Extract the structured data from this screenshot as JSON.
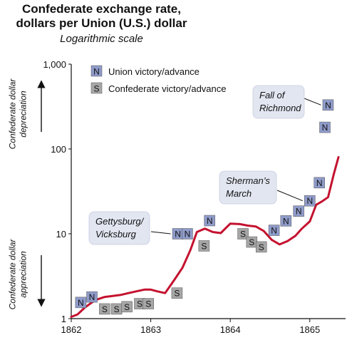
{
  "chart_data": {
    "type": "line",
    "title_lines": [
      "Confederate exchange rate,",
      "dollars per Union (U.S.) dollar"
    ],
    "subtitle": "Logarithmic scale",
    "yscale": "log",
    "ylim": [
      1,
      1000
    ],
    "y_ticks": [
      {
        "value": 1,
        "label": "1"
      },
      {
        "value": 10,
        "label": "10"
      },
      {
        "value": 100,
        "label": "100"
      },
      {
        "value": 1000,
        "label": "1,000"
      }
    ],
    "xlim": [
      1862,
      1865.45
    ],
    "x_ticks": [
      {
        "value": 1862,
        "label": "1862"
      },
      {
        "value": 1863,
        "label": "1863"
      },
      {
        "value": 1864,
        "label": "1864"
      },
      {
        "value": 1865,
        "label": "1865"
      }
    ],
    "y_axis_labels": {
      "upper": [
        "Confederate dollar",
        "depreciation"
      ],
      "lower": [
        "Confederate dollar",
        "appreciation"
      ]
    },
    "legend": [
      {
        "symbol": "N",
        "label": "Union victory/advance",
        "color": "#8f9bc9"
      },
      {
        "symbol": "S",
        "label": "Confederate victory/advance",
        "color": "#a6a6a6"
      }
    ],
    "series": [
      {
        "color": "#c4122f",
        "x": [
          1862.0,
          1862.08,
          1862.17,
          1862.3,
          1862.42,
          1862.52,
          1862.62,
          1862.72,
          1862.82,
          1862.92,
          1863.0,
          1863.08,
          1863.18,
          1863.3,
          1863.4,
          1863.5,
          1863.58,
          1863.68,
          1863.78,
          1863.88,
          1864.0,
          1864.12,
          1864.22,
          1864.32,
          1864.42,
          1864.52,
          1864.62,
          1864.72,
          1864.82,
          1864.9,
          1865.0,
          1865.08,
          1865.15,
          1865.23,
          1865.3,
          1865.36
        ],
        "y": [
          1.05,
          1.12,
          1.35,
          1.65,
          1.8,
          1.85,
          1.9,
          2.0,
          2.1,
          2.2,
          2.2,
          2.1,
          2.0,
          2.9,
          4.0,
          6.5,
          10.5,
          11.5,
          10.5,
          10.2,
          13.2,
          13.0,
          12.5,
          12.2,
          10.8,
          8.5,
          7.5,
          8.2,
          9.5,
          11.5,
          14.0,
          22.0,
          24.0,
          27.0,
          50.0,
          80.0
        ]
      }
    ],
    "markers": [
      {
        "symbol": "N",
        "x": 1862.12,
        "y": 1.55
      },
      {
        "symbol": "N",
        "x": 1862.26,
        "y": 1.8
      },
      {
        "symbol": "S",
        "x": 1862.42,
        "y": 1.3
      },
      {
        "symbol": "S",
        "x": 1862.57,
        "y": 1.3
      },
      {
        "symbol": "S",
        "x": 1862.7,
        "y": 1.38
      },
      {
        "symbol": "S",
        "x": 1862.86,
        "y": 1.5
      },
      {
        "symbol": "S",
        "x": 1862.97,
        "y": 1.5
      },
      {
        "symbol": "N",
        "x": 1863.34,
        "y": 10.0
      },
      {
        "symbol": "N",
        "x": 1863.46,
        "y": 10.0
      },
      {
        "symbol": "S",
        "x": 1863.33,
        "y": 2.0
      },
      {
        "symbol": "S",
        "x": 1863.67,
        "y": 7.2
      },
      {
        "symbol": "N",
        "x": 1863.74,
        "y": 14.3
      },
      {
        "symbol": "S",
        "x": 1864.16,
        "y": 10.0
      },
      {
        "symbol": "S",
        "x": 1864.27,
        "y": 8.0
      },
      {
        "symbol": "S",
        "x": 1864.39,
        "y": 7.0
      },
      {
        "symbol": "N",
        "x": 1864.55,
        "y": 11.0
      },
      {
        "symbol": "N",
        "x": 1864.7,
        "y": 14.2
      },
      {
        "symbol": "N",
        "x": 1864.86,
        "y": 18.5
      },
      {
        "symbol": "N",
        "x": 1865.0,
        "y": 24.5
      },
      {
        "symbol": "N",
        "x": 1865.12,
        "y": 40.0
      },
      {
        "symbol": "N",
        "x": 1865.19,
        "y": 180.0
      },
      {
        "symbol": "N",
        "x": 1865.23,
        "y": 330.0
      }
    ],
    "annotations": [
      {
        "lines": [
          "Gettysburg/",
          "Vicksburg"
        ],
        "target_marker": 7
      },
      {
        "lines": [
          "Sherman’s",
          "March"
        ],
        "target_marker": 18
      },
      {
        "lines": [
          "Fall of",
          "Richmond"
        ],
        "target_marker": 21
      }
    ]
  }
}
